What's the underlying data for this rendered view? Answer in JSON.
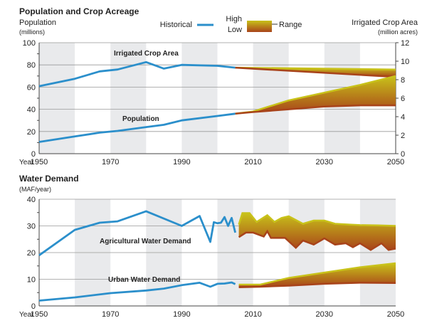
{
  "colors": {
    "historical": "#2b8fcb",
    "high": "#c8c21a",
    "low": "#a8431a",
    "band": "#e9eaec",
    "grid": "#999999"
  },
  "legend": {
    "historical": "Historical",
    "high": "High",
    "low": "Low",
    "range": "Range"
  },
  "chart_data": [
    {
      "type": "line",
      "title": "Population and Crop Acreage",
      "ylabel": "Population",
      "ylabel_unit": "(millions)",
      "y2label": "Irrigated Crop Area",
      "y2label_unit": "(million acres)",
      "xlabel_prefix": "Year",
      "xlim": [
        1950,
        2050
      ],
      "ylim": [
        0,
        100
      ],
      "y2lim": [
        0,
        12
      ],
      "xticks": [
        1950,
        1970,
        1990,
        2010,
        2030,
        2050
      ],
      "yticks": [
        0,
        20,
        40,
        60,
        80,
        100
      ],
      "y2ticks": [
        0,
        2,
        4,
        6,
        8,
        10,
        12
      ],
      "series": [
        {
          "name": "Irrigated Crop Area",
          "axis": "right",
          "historical": [
            [
              1950,
              7.3
            ],
            [
              1960,
              8.1
            ],
            [
              1967,
              8.9
            ],
            [
              1972,
              9.1
            ],
            [
              1980,
              9.9
            ],
            [
              1985,
              9.2
            ],
            [
              1990,
              9.6
            ],
            [
              2000,
              9.5
            ],
            [
              2005,
              9.3
            ]
          ],
          "high": [
            [
              2005,
              9.3
            ],
            [
              2050,
              9.1
            ]
          ],
          "low": [
            [
              2005,
              9.3
            ],
            [
              2050,
              8.3
            ]
          ]
        },
        {
          "name": "Population",
          "axis": "left",
          "historical": [
            [
              1950,
              10.6
            ],
            [
              1960,
              15.5
            ],
            [
              1967,
              19
            ],
            [
              1972,
              20.5
            ],
            [
              1980,
              24
            ],
            [
              1985,
              26
            ],
            [
              1990,
              30
            ],
            [
              2000,
              34
            ],
            [
              2005,
              36
            ]
          ],
          "high": [
            [
              2005,
              36
            ],
            [
              2010,
              38
            ],
            [
              2020,
              48
            ],
            [
              2030,
              55
            ],
            [
              2040,
              62
            ],
            [
              2050,
              70
            ]
          ],
          "low": [
            [
              2005,
              36
            ],
            [
              2010,
              37.5
            ],
            [
              2020,
              40
            ],
            [
              2030,
              42.5
            ],
            [
              2040,
              43.5
            ],
            [
              2050,
              43.5
            ]
          ]
        }
      ]
    },
    {
      "type": "line",
      "title": "Water Demand",
      "ylabel_unit": "(MAF/year)",
      "xlabel_prefix": "Year",
      "xlim": [
        1950,
        2050
      ],
      "ylim": [
        0,
        40
      ],
      "xticks": [
        1950,
        1970,
        1990,
        2010,
        2030,
        2050
      ],
      "yticks": [
        0,
        10,
        20,
        30,
        40
      ],
      "series": [
        {
          "name": "Agricultural Water Demand",
          "historical": [
            [
              1950,
              19
            ],
            [
              1960,
              28.5
            ],
            [
              1967,
              31.2
            ],
            [
              1972,
              31.7
            ],
            [
              1980,
              35.5
            ],
            [
              1990,
              30
            ],
            [
              1995,
              33.7
            ],
            [
              1998,
              24
            ],
            [
              1999,
              31.4
            ],
            [
              2000,
              31
            ],
            [
              2001,
              31.2
            ],
            [
              2002,
              33.3
            ],
            [
              2003,
              30
            ],
            [
              2004,
              33
            ],
            [
              2005,
              27.5
            ]
          ],
          "high": [
            [
              2006,
              30.5
            ],
            [
              2007,
              34.8
            ],
            [
              2009,
              34.8
            ],
            [
              2011,
              31.5
            ],
            [
              2014,
              34
            ],
            [
              2016,
              31.5
            ],
            [
              2018,
              33
            ],
            [
              2020,
              33.6
            ],
            [
              2024,
              30.8
            ],
            [
              2027,
              32
            ],
            [
              2030,
              32
            ],
            [
              2033,
              30.8
            ],
            [
              2037,
              30.5
            ],
            [
              2040,
              30.3
            ],
            [
              2045,
              30.2
            ],
            [
              2050,
              30
            ]
          ],
          "low": [
            [
              2006,
              25.8
            ],
            [
              2008,
              27.5
            ],
            [
              2010,
              27.5
            ],
            [
              2013,
              26
            ],
            [
              2014,
              28
            ],
            [
              2015,
              25.5
            ],
            [
              2019,
              25.5
            ],
            [
              2022,
              21.8
            ],
            [
              2024,
              24.5
            ],
            [
              2027,
              23
            ],
            [
              2030,
              25.3
            ],
            [
              2033,
              23
            ],
            [
              2036,
              23.5
            ],
            [
              2038,
              22
            ],
            [
              2040,
              23.5
            ],
            [
              2043,
              21
            ],
            [
              2046,
              23.5
            ],
            [
              2048,
              21
            ],
            [
              2050,
              21.5
            ]
          ]
        },
        {
          "name": "Urban Water Demand",
          "historical": [
            [
              1950,
              2
            ],
            [
              1960,
              3.2
            ],
            [
              1970,
              4.8
            ],
            [
              1980,
              5.8
            ],
            [
              1985,
              6.5
            ],
            [
              1990,
              7.8
            ],
            [
              1995,
              8.7
            ],
            [
              1998,
              7.2
            ],
            [
              2000,
              8.3
            ],
            [
              2002,
              8.4
            ],
            [
              2004,
              8.8
            ],
            [
              2005,
              8.2
            ]
          ],
          "high": [
            [
              2006,
              8
            ],
            [
              2012,
              8
            ],
            [
              2020,
              10.5
            ],
            [
              2030,
              12.5
            ],
            [
              2040,
              14.5
            ],
            [
              2050,
              16
            ]
          ],
          "low": [
            [
              2006,
              7
            ],
            [
              2012,
              7.2
            ],
            [
              2020,
              7.6
            ],
            [
              2030,
              8.3
            ],
            [
              2040,
              8.7
            ],
            [
              2050,
              8.6
            ]
          ]
        }
      ]
    }
  ]
}
